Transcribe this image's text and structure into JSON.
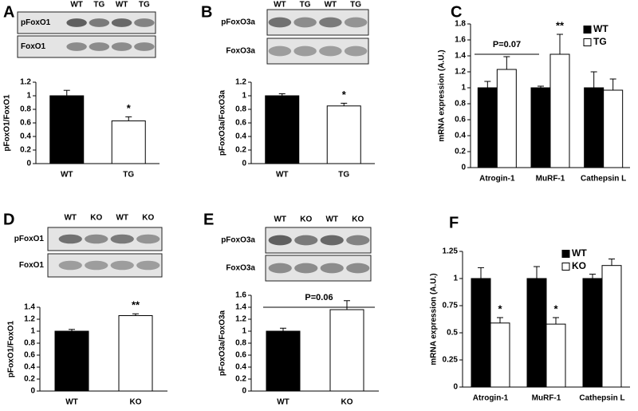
{
  "chart_data": [
    {
      "type": "bar",
      "panel": "A",
      "blot_lanes": [
        "WT",
        "TG",
        "WT",
        "TG"
      ],
      "blot_labels": [
        "pFoxO1",
        "FoxO1"
      ],
      "ylabel": "pFoxO1/FoxO1",
      "categories": [
        "WT",
        "TG"
      ],
      "values": [
        1.0,
        0.63
      ],
      "errors": [
        0.08,
        0.06
      ],
      "colors": [
        "#000000",
        "#ffffff"
      ],
      "ylim": [
        0,
        1.2
      ],
      "yticks": [
        0,
        0.2,
        0.4,
        0.6,
        0.8,
        1,
        1.2
      ],
      "annotations": [
        "*"
      ]
    },
    {
      "type": "bar",
      "panel": "B",
      "blot_lanes": [
        "WT",
        "TG",
        "WT",
        "TG"
      ],
      "blot_labels": [
        "pFoxO3a",
        "FoxO3a"
      ],
      "ylabel": "pFoxO3a/FoxO3a",
      "categories": [
        "WT",
        "TG"
      ],
      "values": [
        1.0,
        0.85
      ],
      "errors": [
        0.03,
        0.04
      ],
      "colors": [
        "#000000",
        "#ffffff"
      ],
      "ylim": [
        0,
        1.2
      ],
      "yticks": [
        0,
        0.2,
        0.4,
        0.6,
        0.8,
        1,
        1.2
      ],
      "annotations": [
        "*"
      ]
    },
    {
      "type": "grouped_bar",
      "panel": "C",
      "ylabel": "mRNA expression (A.U.)",
      "categories": [
        "Atrogin-1",
        "MuRF-1",
        "Cathepsin L"
      ],
      "series": [
        {
          "name": "WT",
          "color": "#000000",
          "values": [
            1.0,
            1.0,
            1.0
          ],
          "errors": [
            0.08,
            0.02,
            0.2
          ]
        },
        {
          "name": "TG",
          "color": "#ffffff",
          "values": [
            1.23,
            1.42,
            0.97
          ],
          "errors": [
            0.16,
            0.25,
            0.14
          ]
        }
      ],
      "ylim": [
        0,
        1.8
      ],
      "yticks": [
        0,
        0.2,
        0.4,
        0.6,
        0.8,
        1,
        1.2,
        1.4,
        1.6,
        1.8
      ],
      "legend": "upper right",
      "annotations": [
        "P=0.07",
        "**"
      ]
    },
    {
      "type": "bar",
      "panel": "D",
      "blot_lanes": [
        "WT",
        "KO",
        "WT",
        "KO"
      ],
      "blot_labels": [
        "pFoxO1",
        "FoxO1"
      ],
      "ylabel": "pFoxO1/FoxO1",
      "categories": [
        "WT",
        "KO"
      ],
      "values": [
        1.0,
        1.26
      ],
      "errors": [
        0.03,
        0.03
      ],
      "colors": [
        "#000000",
        "#ffffff"
      ],
      "ylim": [
        0,
        1.4
      ],
      "yticks": [
        0,
        0.2,
        0.4,
        0.6,
        0.8,
        1,
        1.2,
        1.4
      ],
      "annotations": [
        "**"
      ]
    },
    {
      "type": "bar",
      "panel": "E",
      "blot_lanes": [
        "WT",
        "KO",
        "WT",
        "KO"
      ],
      "blot_labels": [
        "pFoxO3a",
        "FoxO3a"
      ],
      "ylabel": "pFoxO3a/FoxO3a",
      "categories": [
        "WT",
        "KO"
      ],
      "values": [
        1.0,
        1.36
      ],
      "errors": [
        0.05,
        0.15
      ],
      "colors": [
        "#000000",
        "#ffffff"
      ],
      "ylim": [
        0,
        1.6
      ],
      "yticks": [
        0,
        0.2,
        0.4,
        0.6,
        0.8,
        1,
        1.2,
        1.4,
        1.6
      ],
      "annotations": [
        "P=0.06"
      ]
    },
    {
      "type": "grouped_bar",
      "panel": "F",
      "ylabel": "mRNA expression (A.U.)",
      "categories": [
        "Atrogin-1",
        "MuRF-1",
        "Cathepsin L"
      ],
      "series": [
        {
          "name": "WT",
          "color": "#000000",
          "values": [
            1.0,
            1.0,
            1.0
          ],
          "errors": [
            0.1,
            0.11,
            0.04
          ]
        },
        {
          "name": "KO",
          "color": "#ffffff",
          "values": [
            0.59,
            0.58,
            1.12
          ],
          "errors": [
            0.05,
            0.06,
            0.06
          ]
        }
      ],
      "ylim": [
        0,
        1.25
      ],
      "yticks": [
        0,
        0.25,
        0.5,
        0.75,
        1,
        1.25
      ],
      "legend": "upper right",
      "annotations": [
        "*",
        "*"
      ]
    }
  ]
}
